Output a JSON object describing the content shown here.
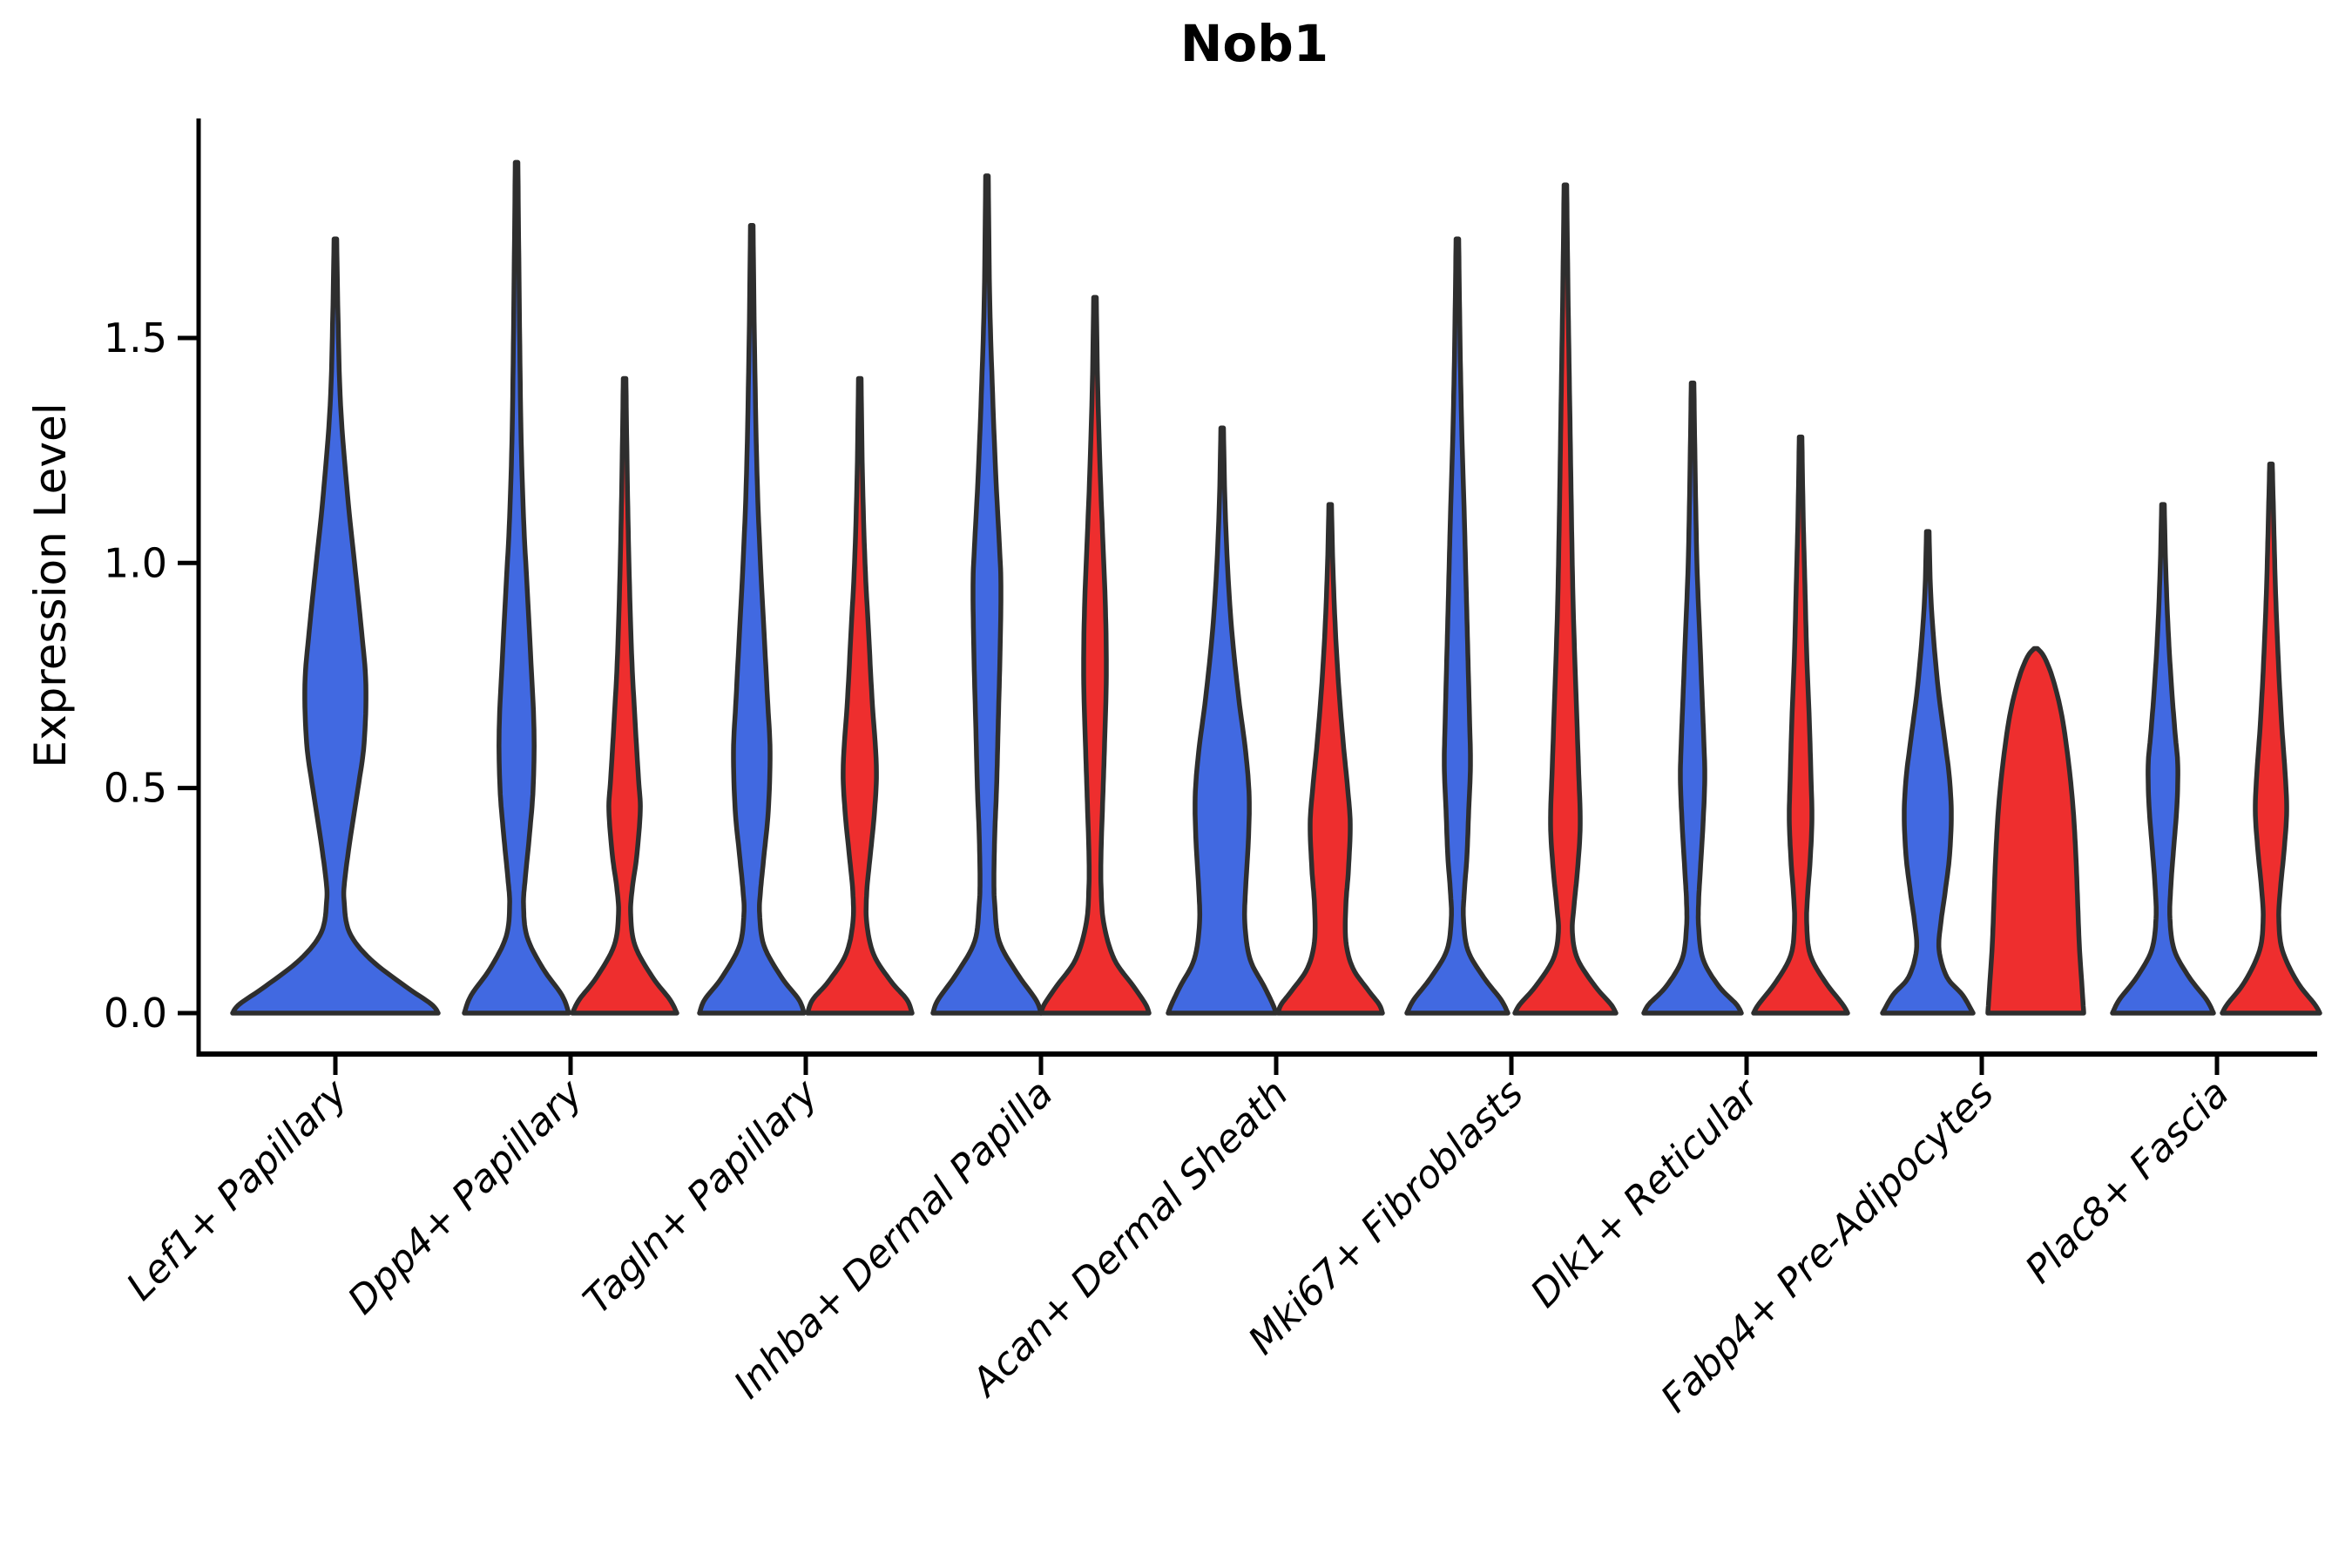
{
  "chart_data": {
    "type": "violin",
    "title": "Nob1",
    "xlabel": "",
    "ylabel": "Expression Level",
    "ylim": [
      0,
      2.0
    ],
    "grid": false,
    "legend": "none",
    "yticks": [
      {
        "label": "0.0",
        "value": 0.0
      },
      {
        "label": "0.5",
        "value": 0.5
      },
      {
        "label": "1.0",
        "value": 1.0
      },
      {
        "label": "1.5",
        "value": 1.5
      }
    ],
    "categories": [
      "Lef1+ Papillary",
      "Dpp4+ Papillary",
      "Tagln+ Papillary",
      "Inhba+ Dermal Papilla",
      "Acan+ Dermal Sheath",
      "Mki67+ Fibroblasts",
      "Dlk1+ Reticular",
      "Fabp4+ Pre-Adipocytes",
      "Plac8+ Fascia"
    ],
    "groups": [
      {
        "name": "blue",
        "color": "#4169E1"
      },
      {
        "name": "red",
        "color": "#EE2E2E"
      }
    ],
    "outline_color": "#2e2e2e",
    "violins": [
      {
        "category": 0,
        "group": "blue",
        "single": true,
        "tip": 1.72,
        "profile": [
          [
            1.72,
            1.5
          ],
          [
            1.55,
            3
          ],
          [
            1.35,
            6
          ],
          [
            1.15,
            14
          ],
          [
            1.0,
            22
          ],
          [
            0.85,
            30
          ],
          [
            0.73,
            35
          ],
          [
            0.6,
            33
          ],
          [
            0.5,
            26
          ],
          [
            0.4,
            18
          ],
          [
            0.3,
            11
          ],
          [
            0.25,
            10
          ],
          [
            0.18,
            16
          ],
          [
            0.12,
            40
          ],
          [
            0.06,
            80
          ],
          [
            0.02,
            110
          ],
          [
            0,
            118
          ]
        ]
      },
      {
        "category": 1,
        "group": "blue",
        "tip": 1.89,
        "profile": [
          [
            1.89,
            1.5
          ],
          [
            1.6,
            3
          ],
          [
            1.3,
            5
          ],
          [
            1.1,
            8
          ],
          [
            0.95,
            12
          ],
          [
            0.8,
            16
          ],
          [
            0.63,
            20
          ],
          [
            0.5,
            19
          ],
          [
            0.4,
            15
          ],
          [
            0.3,
            10
          ],
          [
            0.24,
            8
          ],
          [
            0.17,
            12
          ],
          [
            0.1,
            30
          ],
          [
            0.04,
            52
          ],
          [
            0,
            60
          ]
        ]
      },
      {
        "category": 1,
        "group": "red",
        "tip": 1.41,
        "profile": [
          [
            1.41,
            1.5
          ],
          [
            1.2,
            3
          ],
          [
            1.0,
            5
          ],
          [
            0.8,
            8
          ],
          [
            0.65,
            12
          ],
          [
            0.52,
            16
          ],
          [
            0.45,
            18
          ],
          [
            0.35,
            14
          ],
          [
            0.28,
            9
          ],
          [
            0.22,
            7
          ],
          [
            0.15,
            12
          ],
          [
            0.08,
            32
          ],
          [
            0.03,
            52
          ],
          [
            0,
            60
          ]
        ]
      },
      {
        "category": 2,
        "group": "blue",
        "tip": 1.75,
        "profile": [
          [
            1.75,
            1.5
          ],
          [
            1.5,
            3
          ],
          [
            1.2,
            6
          ],
          [
            1.0,
            10
          ],
          [
            0.85,
            14
          ],
          [
            0.7,
            18
          ],
          [
            0.58,
            21
          ],
          [
            0.45,
            19
          ],
          [
            0.35,
            14
          ],
          [
            0.27,
            10
          ],
          [
            0.22,
            9
          ],
          [
            0.15,
            14
          ],
          [
            0.08,
            34
          ],
          [
            0.03,
            54
          ],
          [
            0,
            60
          ]
        ]
      },
      {
        "category": 2,
        "group": "red",
        "tip": 1.41,
        "profile": [
          [
            1.41,
            1.5
          ],
          [
            1.2,
            3
          ],
          [
            1.0,
            6
          ],
          [
            0.85,
            10
          ],
          [
            0.7,
            14
          ],
          [
            0.55,
            19
          ],
          [
            0.45,
            17
          ],
          [
            0.35,
            12
          ],
          [
            0.27,
            8
          ],
          [
            0.2,
            8
          ],
          [
            0.13,
            16
          ],
          [
            0.07,
            36
          ],
          [
            0.03,
            54
          ],
          [
            0,
            60
          ]
        ]
      },
      {
        "category": 3,
        "group": "blue",
        "tip": 1.86,
        "profile": [
          [
            1.86,
            1.5
          ],
          [
            1.6,
            3
          ],
          [
            1.4,
            6
          ],
          [
            1.2,
            10
          ],
          [
            1.05,
            14
          ],
          [
            0.95,
            16
          ],
          [
            0.8,
            15
          ],
          [
            0.65,
            13
          ],
          [
            0.5,
            11
          ],
          [
            0.4,
            9
          ],
          [
            0.3,
            8
          ],
          [
            0.24,
            9
          ],
          [
            0.16,
            14
          ],
          [
            0.09,
            34
          ],
          [
            0.03,
            56
          ],
          [
            0,
            62
          ]
        ]
      },
      {
        "category": 3,
        "group": "red",
        "tip": 1.59,
        "profile": [
          [
            1.59,
            1.5
          ],
          [
            1.4,
            3
          ],
          [
            1.2,
            6
          ],
          [
            1.05,
            9
          ],
          [
            0.9,
            12
          ],
          [
            0.75,
            13
          ],
          [
            0.6,
            11
          ],
          [
            0.48,
            9
          ],
          [
            0.36,
            7
          ],
          [
            0.28,
            7
          ],
          [
            0.2,
            10
          ],
          [
            0.12,
            22
          ],
          [
            0.06,
            44
          ],
          [
            0.02,
            58
          ],
          [
            0,
            62
          ]
        ]
      },
      {
        "category": 4,
        "group": "blue",
        "tip": 1.3,
        "profile": [
          [
            1.3,
            1.5
          ],
          [
            1.15,
            3
          ],
          [
            1.0,
            6
          ],
          [
            0.85,
            11
          ],
          [
            0.7,
            19
          ],
          [
            0.58,
            27
          ],
          [
            0.48,
            31
          ],
          [
            0.38,
            30
          ],
          [
            0.28,
            27
          ],
          [
            0.2,
            26
          ],
          [
            0.12,
            32
          ],
          [
            0.06,
            48
          ],
          [
            0.02,
            58
          ],
          [
            0,
            62
          ]
        ]
      },
      {
        "category": 4,
        "group": "red",
        "tip": 1.13,
        "profile": [
          [
            1.13,
            1.5
          ],
          [
            1.0,
            3
          ],
          [
            0.85,
            6
          ],
          [
            0.72,
            10
          ],
          [
            0.6,
            15
          ],
          [
            0.5,
            20
          ],
          [
            0.42,
            23
          ],
          [
            0.32,
            21
          ],
          [
            0.24,
            18
          ],
          [
            0.16,
            18
          ],
          [
            0.1,
            26
          ],
          [
            0.05,
            44
          ],
          [
            0.02,
            56
          ],
          [
            0,
            60
          ]
        ]
      },
      {
        "category": 5,
        "group": "blue",
        "tip": 1.72,
        "profile": [
          [
            1.72,
            1.5
          ],
          [
            1.5,
            3
          ],
          [
            1.3,
            5
          ],
          [
            1.1,
            8
          ],
          [
            0.95,
            10
          ],
          [
            0.8,
            12
          ],
          [
            0.65,
            14
          ],
          [
            0.55,
            15
          ],
          [
            0.45,
            13
          ],
          [
            0.35,
            11
          ],
          [
            0.27,
            8
          ],
          [
            0.21,
            7
          ],
          [
            0.14,
            12
          ],
          [
            0.08,
            30
          ],
          [
            0.03,
            50
          ],
          [
            0,
            58
          ]
        ]
      },
      {
        "category": 5,
        "group": "red",
        "tip": 1.84,
        "profile": [
          [
            1.84,
            1.5
          ],
          [
            1.6,
            3
          ],
          [
            1.35,
            5
          ],
          [
            1.1,
            7
          ],
          [
            0.9,
            9
          ],
          [
            0.72,
            12
          ],
          [
            0.55,
            15
          ],
          [
            0.42,
            17
          ],
          [
            0.32,
            14
          ],
          [
            0.24,
            10
          ],
          [
            0.18,
            8
          ],
          [
            0.12,
            14
          ],
          [
            0.06,
            34
          ],
          [
            0.02,
            52
          ],
          [
            0,
            58
          ]
        ]
      },
      {
        "category": 6,
        "group": "blue",
        "tip": 1.4,
        "profile": [
          [
            1.4,
            1.5
          ],
          [
            1.2,
            3
          ],
          [
            1.0,
            5
          ],
          [
            0.85,
            8
          ],
          [
            0.7,
            11
          ],
          [
            0.6,
            13
          ],
          [
            0.52,
            14
          ],
          [
            0.42,
            12
          ],
          [
            0.32,
            9
          ],
          [
            0.25,
            7
          ],
          [
            0.19,
            7
          ],
          [
            0.12,
            12
          ],
          [
            0.06,
            30
          ],
          [
            0.02,
            50
          ],
          [
            0,
            56
          ]
        ]
      },
      {
        "category": 6,
        "group": "red",
        "tip": 1.28,
        "profile": [
          [
            1.28,
            1.5
          ],
          [
            1.1,
            3
          ],
          [
            0.95,
            5
          ],
          [
            0.8,
            7
          ],
          [
            0.65,
            10
          ],
          [
            0.52,
            12
          ],
          [
            0.43,
            13
          ],
          [
            0.34,
            11
          ],
          [
            0.26,
            8
          ],
          [
            0.2,
            7
          ],
          [
            0.13,
            11
          ],
          [
            0.07,
            28
          ],
          [
            0.02,
            48
          ],
          [
            0,
            54
          ]
        ]
      },
      {
        "category": 7,
        "group": "blue",
        "tip": 1.07,
        "profile": [
          [
            1.07,
            1.5
          ],
          [
            0.95,
            3
          ],
          [
            0.85,
            6
          ],
          [
            0.72,
            12
          ],
          [
            0.6,
            20
          ],
          [
            0.52,
            25
          ],
          [
            0.44,
            27
          ],
          [
            0.35,
            25
          ],
          [
            0.27,
            20
          ],
          [
            0.2,
            15
          ],
          [
            0.14,
            13
          ],
          [
            0.08,
            22
          ],
          [
            0.04,
            40
          ],
          [
            0,
            52
          ]
        ]
      },
      {
        "category": 7,
        "group": "red",
        "tip": 0.81,
        "profile": [
          [
            0.81,
            2
          ],
          [
            0.79,
            10
          ],
          [
            0.74,
            20
          ],
          [
            0.66,
            30
          ],
          [
            0.55,
            38
          ],
          [
            0.45,
            43
          ],
          [
            0.35,
            46
          ],
          [
            0.25,
            48
          ],
          [
            0.15,
            50
          ],
          [
            0.06,
            53
          ],
          [
            0,
            55
          ]
        ]
      },
      {
        "category": 8,
        "group": "blue",
        "tip": 1.13,
        "profile": [
          [
            1.13,
            1.5
          ],
          [
            1.0,
            3
          ],
          [
            0.85,
            6
          ],
          [
            0.72,
            10
          ],
          [
            0.62,
            14
          ],
          [
            0.55,
            17
          ],
          [
            0.46,
            16
          ],
          [
            0.36,
            12
          ],
          [
            0.28,
            9
          ],
          [
            0.21,
            8
          ],
          [
            0.14,
            13
          ],
          [
            0.08,
            30
          ],
          [
            0.03,
            50
          ],
          [
            0,
            58
          ]
        ]
      },
      {
        "category": 8,
        "group": "red",
        "tip": 1.22,
        "profile": [
          [
            1.22,
            1.5
          ],
          [
            1.1,
            3
          ],
          [
            0.95,
            5
          ],
          [
            0.8,
            8
          ],
          [
            0.65,
            12
          ],
          [
            0.54,
            16
          ],
          [
            0.45,
            18
          ],
          [
            0.36,
            15
          ],
          [
            0.28,
            11
          ],
          [
            0.21,
            9
          ],
          [
            0.14,
            13
          ],
          [
            0.07,
            30
          ],
          [
            0.02,
            50
          ],
          [
            0,
            56
          ]
        ]
      }
    ]
  }
}
